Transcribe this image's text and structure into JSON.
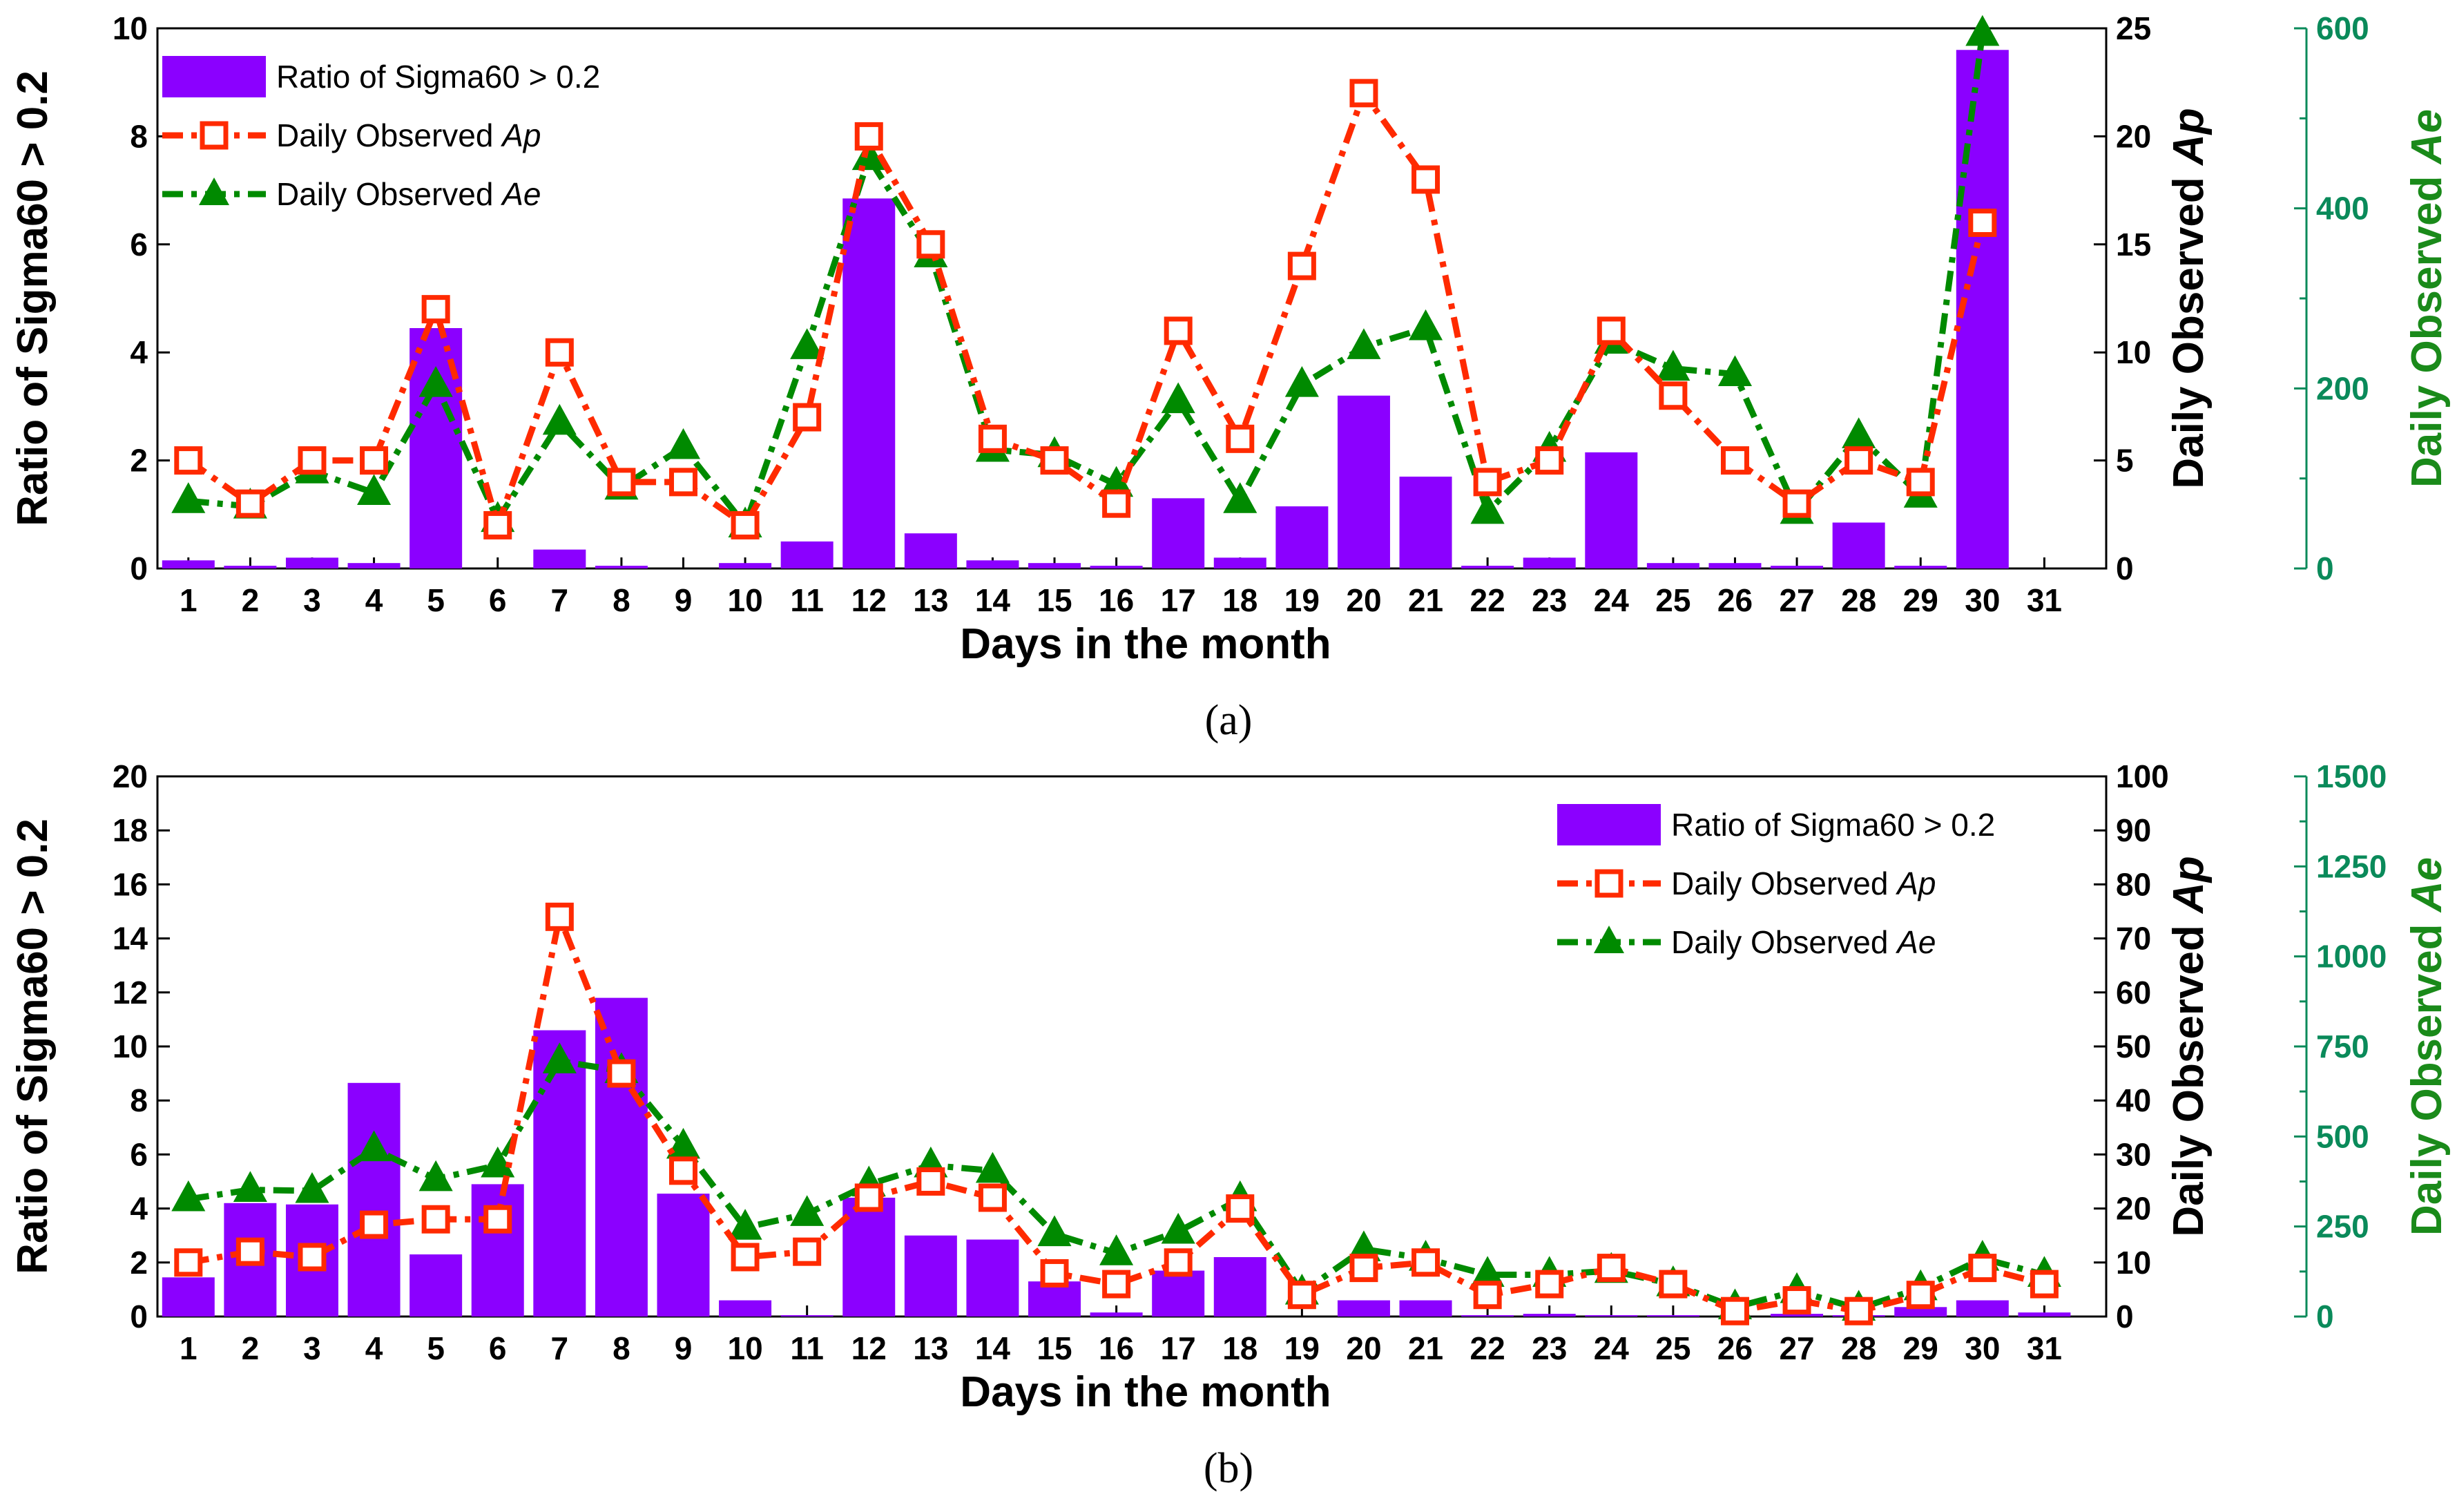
{
  "colors": {
    "bar": "#8b00ff",
    "ap": "#ff2a00",
    "ae": "#008a00",
    "ae_axis": "#0a8a5a"
  },
  "chart_data": [
    {
      "type": "bar+line",
      "caption": "(a)",
      "xlabel": "Days in the month",
      "ylabel": "Ratio of Sigma60 > 0.2",
      "y2label": {
        "prefix": "Daily Observed ",
        "italic": "Ap"
      },
      "y3label": {
        "prefix": "Daily Observed ",
        "italic": "Ae"
      },
      "legend_position": "top-left",
      "legend": [
        {
          "prefix": "Ratio of Sigma60 > 0.2",
          "italic": ""
        },
        {
          "prefix": "Daily Observed ",
          "italic": "Ap"
        },
        {
          "prefix": "Daily Observed ",
          "italic": "Ae"
        }
      ],
      "xlim": [
        0.5,
        32
      ],
      "ylim": [
        0,
        10
      ],
      "y2lim": [
        0,
        25
      ],
      "y3lim": [
        0,
        600
      ],
      "yticks": [
        "0",
        "2",
        "4",
        "6",
        "8",
        "10"
      ],
      "y2ticks": [
        "0",
        "5",
        "10",
        "15",
        "20",
        "25"
      ],
      "y3ticks": [
        "0",
        "200",
        "400",
        "600"
      ],
      "xticks": [
        "1",
        "2",
        "3",
        "4",
        "5",
        "6",
        "7",
        "8",
        "9",
        "10",
        "11",
        "12",
        "13",
        "14",
        "15",
        "16",
        "17",
        "18",
        "19",
        "20",
        "21",
        "22",
        "23",
        "24",
        "25",
        "26",
        "27",
        "28",
        "29",
        "30",
        "31"
      ],
      "series": [
        {
          "name": "Ratio of Sigma60 > 0.2",
          "axis": "left",
          "values": [
            0.15,
            0.05,
            0.2,
            0.1,
            4.45,
            0,
            0.35,
            0.05,
            0,
            0.1,
            0.5,
            6.85,
            0.65,
            0.15,
            0.1,
            0.05,
            1.3,
            0.2,
            1.15,
            3.2,
            1.7,
            0.05,
            0.2,
            2.15,
            0.1,
            0.1,
            0.05,
            0.85,
            0.05,
            9.6,
            0
          ]
        },
        {
          "name": "Daily Observed Ap",
          "axis": "right",
          "values": [
            5,
            3,
            5,
            5,
            12,
            2,
            10,
            4,
            4,
            2,
            7,
            20,
            15,
            6,
            5,
            3,
            11,
            6,
            14,
            22,
            18,
            4,
            5,
            11,
            8,
            5,
            3,
            5,
            4,
            16
          ]
        },
        {
          "name": "Daily Observed Ae",
          "axis": "far-right",
          "values": [
            75,
            69,
            108,
            84,
            204,
            54,
            162,
            90,
            135,
            48,
            246,
            456,
            348,
            132,
            126,
            93,
            186,
            75,
            204,
            246,
            267,
            63,
            132,
            252,
            222,
            216,
            63,
            147,
            81,
            594
          ]
        }
      ]
    },
    {
      "type": "bar+line",
      "caption": "(b)",
      "xlabel": "Days in the month",
      "ylabel": "Ratio of Sigma60 > 0.2",
      "y2label": {
        "prefix": "Daily Observed ",
        "italic": "Ap"
      },
      "y3label": {
        "prefix": "Daily Observed ",
        "italic": "Ae"
      },
      "legend_position": "top-right",
      "legend": [
        {
          "prefix": "Ratio of Sigma60 > 0.2",
          "italic": ""
        },
        {
          "prefix": "Daily Observed ",
          "italic": "Ap"
        },
        {
          "prefix": "Daily Observed ",
          "italic": "Ae"
        }
      ],
      "xlim": [
        0.5,
        32
      ],
      "ylim": [
        0,
        20
      ],
      "y2lim": [
        0,
        100
      ],
      "y3lim": [
        0,
        1500
      ],
      "yticks": [
        "0",
        "2",
        "4",
        "6",
        "8",
        "10",
        "12",
        "14",
        "16",
        "18",
        "20"
      ],
      "y2ticks": [
        "0",
        "10",
        "20",
        "30",
        "40",
        "50",
        "60",
        "70",
        "80",
        "90",
        "100"
      ],
      "y3ticks": [
        "0",
        "250",
        "500",
        "750",
        "1000",
        "1250",
        "1500"
      ],
      "xticks": [
        "1",
        "2",
        "3",
        "4",
        "5",
        "6",
        "7",
        "8",
        "9",
        "10",
        "11",
        "12",
        "13",
        "14",
        "15",
        "16",
        "17",
        "18",
        "19",
        "20",
        "21",
        "22",
        "23",
        "24",
        "25",
        "26",
        "27",
        "28",
        "29",
        "30",
        "31"
      ],
      "series": [
        {
          "name": "Ratio of Sigma60 > 0.2",
          "axis": "left",
          "values": [
            1.45,
            4.2,
            4.15,
            8.65,
            2.3,
            4.9,
            10.6,
            11.8,
            4.55,
            0.6,
            0.05,
            4.4,
            3.0,
            2.85,
            1.3,
            0.15,
            1.7,
            2.2,
            0,
            0.6,
            0.6,
            0.05,
            0.1,
            0.05,
            0.05,
            0,
            0.1,
            0.05,
            0.35,
            0.6,
            0.15
          ]
        },
        {
          "name": "Daily Observed Ap",
          "axis": "right",
          "values": [
            10,
            12,
            11,
            17,
            18,
            18,
            74,
            45,
            27,
            11,
            12,
            22,
            25,
            22,
            8,
            6,
            10,
            20,
            4,
            9,
            10,
            4,
            6,
            9,
            6,
            1,
            3,
            1,
            4,
            9,
            6
          ]
        },
        {
          "name": "Daily Observed Ae",
          "axis": "far-right",
          "values": [
            326,
            352,
            349,
            465,
            382,
            420,
            709,
            682,
            472,
            247,
            285,
            367,
            420,
            405,
            229,
            176,
            236,
            326,
            67,
            187,
            161,
            116,
            116,
            127,
            90,
            26,
            71,
            22,
            79,
            161,
            116
          ]
        }
      ]
    }
  ]
}
